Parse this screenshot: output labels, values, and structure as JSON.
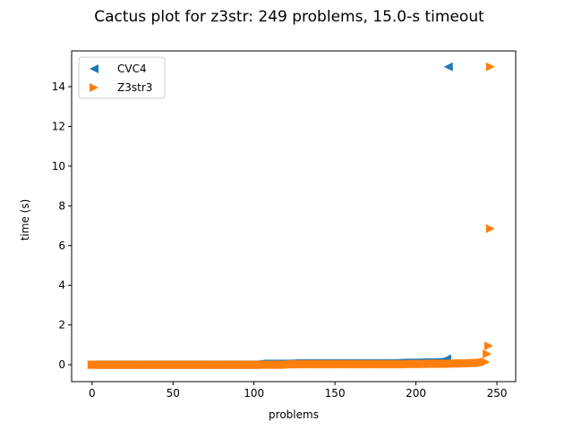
{
  "chart_data": {
    "type": "scatter",
    "title": "Cactus plot for z3str: 249 problems, 15.0-s timeout",
    "xlabel": "problems",
    "ylabel": "time (s)",
    "xlim": [
      -12.6,
      261.6
    ],
    "ylim": [
      -0.85,
      15.8
    ],
    "xticks": [
      0,
      50,
      100,
      150,
      200,
      250
    ],
    "yticks": [
      0,
      2,
      4,
      6,
      8,
      10,
      12,
      14
    ],
    "legend_position": "top-left",
    "series": [
      {
        "name": "CVC4",
        "marker": "triangle-left",
        "color": "#1f77b4",
        "points": [
          [
            0,
            0.0
          ],
          [
            10,
            0.0
          ],
          [
            20,
            0.0
          ],
          [
            30,
            0.0
          ],
          [
            40,
            0.0
          ],
          [
            50,
            0.0
          ],
          [
            60,
            0.0
          ],
          [
            70,
            0.0
          ],
          [
            80,
            0.0
          ],
          [
            90,
            0.0
          ],
          [
            100,
            0.0
          ],
          [
            105,
            0.05
          ],
          [
            110,
            0.05
          ],
          [
            115,
            0.05
          ],
          [
            120,
            0.05
          ],
          [
            125,
            0.07
          ],
          [
            135,
            0.07
          ],
          [
            145,
            0.07
          ],
          [
            155,
            0.07
          ],
          [
            165,
            0.07
          ],
          [
            175,
            0.07
          ],
          [
            185,
            0.07
          ],
          [
            192,
            0.1
          ],
          [
            198,
            0.1
          ],
          [
            204,
            0.12
          ],
          [
            210,
            0.12
          ],
          [
            214,
            0.13
          ],
          [
            217,
            0.18
          ],
          [
            219,
            0.3
          ],
          [
            220,
            15.0
          ]
        ]
      },
      {
        "name": "Z3str3",
        "marker": "triangle-right",
        "color": "#ff7f0e",
        "points": [
          [
            0,
            0.0
          ],
          [
            10,
            0.0
          ],
          [
            20,
            0.0
          ],
          [
            30,
            0.0
          ],
          [
            40,
            0.0
          ],
          [
            50,
            0.0
          ],
          [
            60,
            0.0
          ],
          [
            70,
            0.0
          ],
          [
            80,
            0.0
          ],
          [
            90,
            0.0
          ],
          [
            100,
            0.0
          ],
          [
            110,
            0.0
          ],
          [
            120,
            0.0
          ],
          [
            125,
            0.03
          ],
          [
            135,
            0.03
          ],
          [
            145,
            0.03
          ],
          [
            155,
            0.03
          ],
          [
            165,
            0.03
          ],
          [
            175,
            0.03
          ],
          [
            185,
            0.03
          ],
          [
            195,
            0.03
          ],
          [
            200,
            0.04
          ],
          [
            205,
            0.04
          ],
          [
            210,
            0.05
          ],
          [
            215,
            0.05
          ],
          [
            220,
            0.05
          ],
          [
            225,
            0.06
          ],
          [
            230,
            0.07
          ],
          [
            235,
            0.08
          ],
          [
            240,
            0.1
          ],
          [
            243,
            0.14
          ],
          [
            245,
            0.95
          ],
          [
            246,
            6.85
          ],
          [
            246,
            15.0
          ]
        ]
      }
    ]
  }
}
